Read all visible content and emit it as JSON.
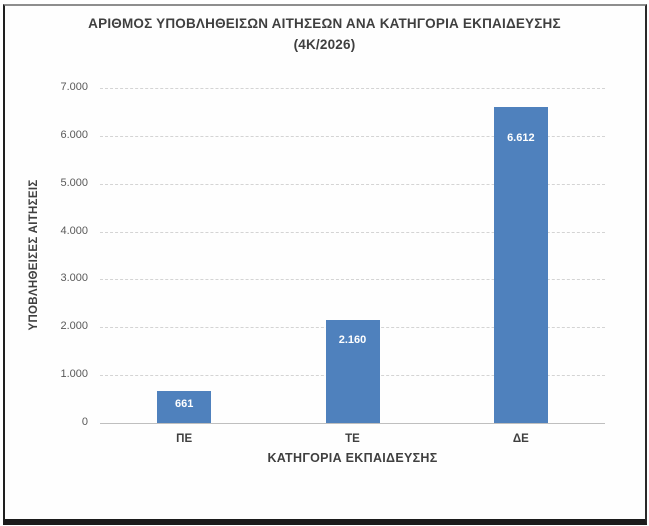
{
  "chart_data": {
    "type": "bar",
    "title": "ΑΡΙΘΜΟΣ ΥΠΟΒΛΗΘΕΙΣΩΝ ΑΙΤΗΣΕΩΝ ΑΝΑ ΚΑΤΗΓΟΡΙΑ ΕΚΠΑΙΔΕΥΣΗΣ",
    "subtitle": "(4Κ/2026)",
    "xlabel": "ΚΑΤΗΓΟΡΙΑ ΕΚΠΑΙΔΕΥΣΗΣ",
    "ylabel": "ΥΠΟΒΛΗΘΕΙΣΕΣ ΑΙΤΗΣΕΙΣ",
    "categories": [
      "ΠΕ",
      "ΤΕ",
      "ΔΕ"
    ],
    "values": [
      661,
      2160,
      6612
    ],
    "value_labels": [
      "661",
      "2.160",
      "6.612"
    ],
    "ylim": [
      0,
      7000
    ],
    "ytick_step": 1000,
    "ytick_labels": [
      "0",
      "1.000",
      "2.000",
      "3.000",
      "4.000",
      "5.000",
      "6.000",
      "7.000"
    ],
    "grid": "horizontal-dashed",
    "legend": "none",
    "colors": {
      "bar": "#4F81BD",
      "bar_label": "#FFFFFF",
      "title_text": "#3F3F3F",
      "tick_text": "#595959",
      "gridline": "#D4D4D4",
      "axis_line": "#BFBFBF"
    }
  }
}
